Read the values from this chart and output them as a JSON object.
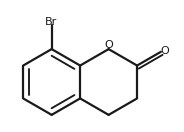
{
  "background_color": "#ffffff",
  "line_color": "#1a1a1a",
  "line_width": 1.6,
  "Br_label": "Br",
  "O_ring_label": "O",
  "O_carbonyl_label": "O",
  "font_size_atom": 8.0,
  "r_hex": 0.36
}
